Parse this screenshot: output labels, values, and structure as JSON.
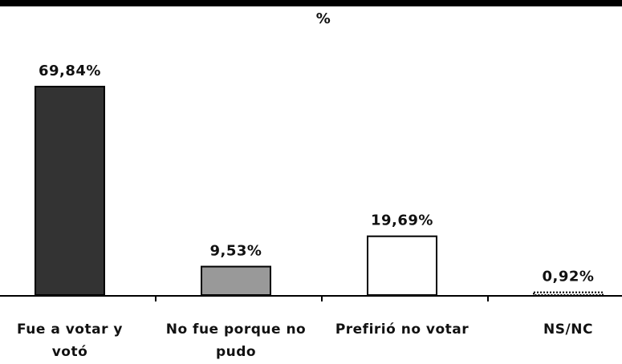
{
  "chart_data": {
    "type": "bar",
    "title": "%",
    "categories": [
      [
        "Fue a votar y",
        "votó"
      ],
      [
        "No fue porque no",
        "pudo"
      ],
      [
        "Prefirió no votar"
      ],
      [
        "NS/NC"
      ]
    ],
    "values": [
      69.84,
      9.53,
      19.69,
      0.92
    ],
    "value_labels": [
      "69,84%",
      "9,53%",
      "19,69%",
      "0,92%"
    ],
    "bar_colors": [
      "#333333",
      "#999999",
      "#ffffff",
      "#ffffff"
    ],
    "ylim": [
      0,
      70
    ],
    "grid": false,
    "legend": "none"
  }
}
